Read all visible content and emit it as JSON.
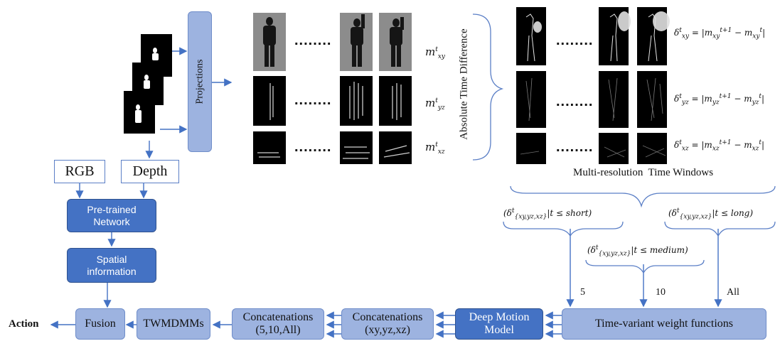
{
  "inputs": {
    "rgb_label": "RGB",
    "depth_label": "Depth"
  },
  "projections_label": "Projections",
  "motion_maps": {
    "xy": {
      "symbol": "m",
      "sup": "t",
      "sub": "xy"
    },
    "yz": {
      "symbol": "m",
      "sup": "t",
      "sub": "yz"
    },
    "xz": {
      "symbol": "m",
      "sup": "t",
      "sub": "xz"
    }
  },
  "ellipsis": "........",
  "absolute_time_difference_label": "Absolute Time Difference",
  "delta_equations": {
    "xy": {
      "lhs_sub": "xy",
      "rhs": "= |m<sub>xy</sub><sup>t+1</sup> − m<sub>xy</sub><sup>t</sup>|"
    },
    "yz": {
      "lhs_sub": "yz",
      "rhs": "= |m<sub>yz</sub><sup>t+1</sup> − m<sub>yz</sub><sup>t</sup>|"
    },
    "xz": {
      "lhs_sub": "xz",
      "rhs": "= |m<sub>xz</sub><sup>t+1</sup> − m<sub>xz</sub><sup>t</sup>|"
    }
  },
  "multi_resolution_label": "Multi-resolution  Time Windows",
  "windows": {
    "short": "(δ<sup>t</sup><sub>{xy,yz,xz}</sub>|t ≤ short)",
    "medium": "(δ<sup>t</sup><sub>{xy,yz,xz}</sub>|t ≤ medium)",
    "long": "(δ<sup>t</sup><sub>{xy,yz,xz}</sub>|t ≤ long)"
  },
  "window_counts": {
    "short": "5",
    "medium": "10",
    "all": "All"
  },
  "boxes": {
    "pretrained": "Pre-trained Network",
    "spatial": "Spatial information",
    "time_variant": "Time-variant weight functions",
    "deep_motion": "Deep Motion Model",
    "concat_xyz_title": "Concatenations",
    "concat_xyz_sub": "(xy,yz,xz)",
    "concat_windows_title": "Concatenations",
    "concat_windows_sub": "(5,10,All)",
    "twmdmms": "TWMDMMs",
    "fusion": "Fusion"
  },
  "output_label": "Action",
  "colors": {
    "dark_box": "#4472c4",
    "light_box": "#9db3e0",
    "arrow": "#4472c4",
    "brace": "#5b7fc6"
  }
}
